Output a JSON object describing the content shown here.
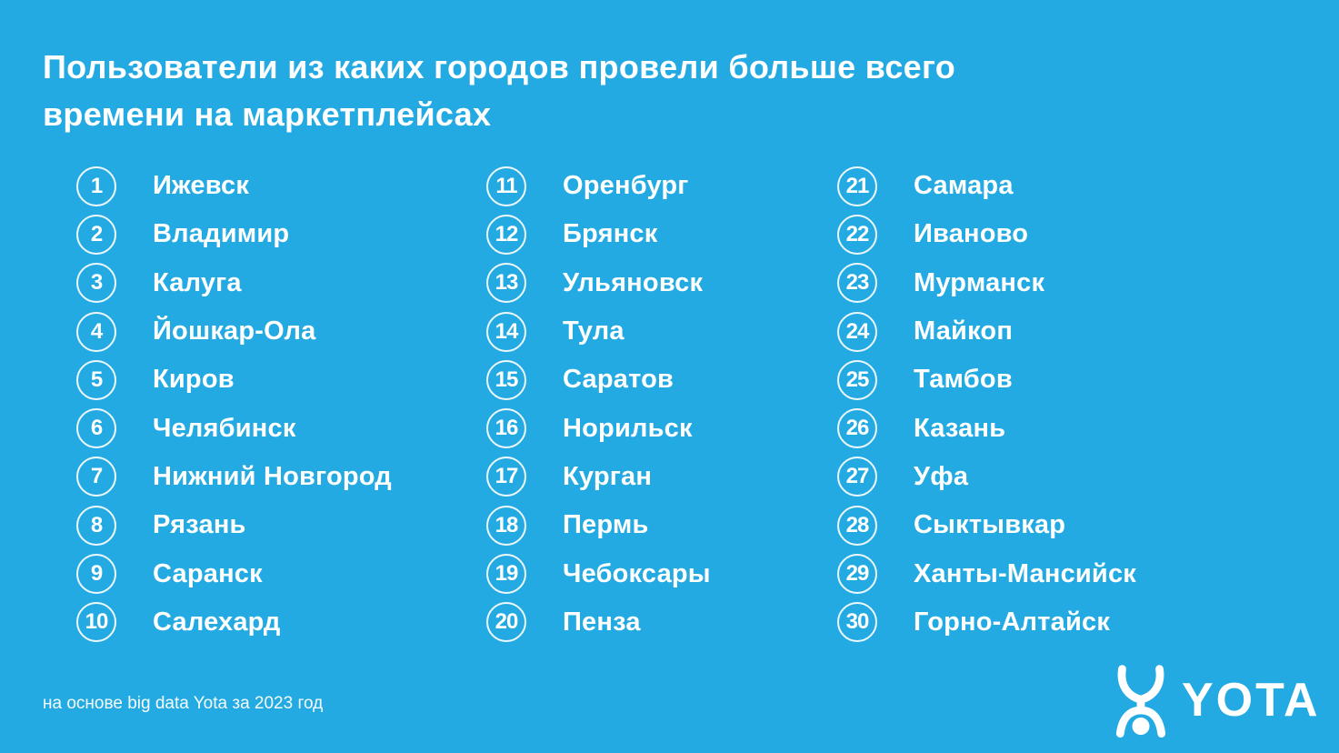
{
  "colors": {
    "background": "#23AAE2",
    "text": "#FFFFFF"
  },
  "title": {
    "line1": "Пользователи из каких городов провели больше всего",
    "line2": "времени на маркетплейсах"
  },
  "ranking": {
    "columns": [
      {
        "items": [
          {
            "rank": 1,
            "city": "Ижевск"
          },
          {
            "rank": 2,
            "city": "Владимир"
          },
          {
            "rank": 3,
            "city": "Калуга"
          },
          {
            "rank": 4,
            "city": "Йошкар-Ола"
          },
          {
            "rank": 5,
            "city": "Киров"
          },
          {
            "rank": 6,
            "city": "Челябинск"
          },
          {
            "rank": 7,
            "city": "Нижний Новгород"
          },
          {
            "rank": 8,
            "city": "Рязань"
          },
          {
            "rank": 9,
            "city": "Саранск"
          },
          {
            "rank": 10,
            "city": "Салехард"
          }
        ]
      },
      {
        "items": [
          {
            "rank": 11,
            "city": "Оренбург"
          },
          {
            "rank": 12,
            "city": "Брянск"
          },
          {
            "rank": 13,
            "city": "Ульяновск"
          },
          {
            "rank": 14,
            "city": "Тула"
          },
          {
            "rank": 15,
            "city": "Саратов"
          },
          {
            "rank": 16,
            "city": "Норильск"
          },
          {
            "rank": 17,
            "city": "Курган"
          },
          {
            "rank": 18,
            "city": "Пермь"
          },
          {
            "rank": 19,
            "city": "Чебоксары"
          },
          {
            "rank": 20,
            "city": "Пенза"
          }
        ]
      },
      {
        "items": [
          {
            "rank": 21,
            "city": "Самара"
          },
          {
            "rank": 22,
            "city": "Иваново"
          },
          {
            "rank": 23,
            "city": "Мурманск"
          },
          {
            "rank": 24,
            "city": "Майкоп"
          },
          {
            "rank": 25,
            "city": "Тамбов"
          },
          {
            "rank": 26,
            "city": "Казань"
          },
          {
            "rank": 27,
            "city": "Уфа"
          },
          {
            "rank": 28,
            "city": "Сыктывкар"
          },
          {
            "rank": 29,
            "city": "Ханты-Мансийск"
          },
          {
            "rank": 30,
            "city": "Горно-Алтайск"
          }
        ]
      }
    ]
  },
  "footnote": "на основе big data Yota за 2023 год",
  "logo": {
    "brand": "YOTA",
    "mark_icon": "yota-figure-icon"
  },
  "chart_data": {
    "type": "table",
    "title": "Пользователи из каких городов провели больше всего времени на маркетплейсах",
    "columns": [
      "rank",
      "city"
    ],
    "rows": [
      [
        1,
        "Ижевск"
      ],
      [
        2,
        "Владимир"
      ],
      [
        3,
        "Калуга"
      ],
      [
        4,
        "Йошкар-Ола"
      ],
      [
        5,
        "Киров"
      ],
      [
        6,
        "Челябинск"
      ],
      [
        7,
        "Нижний Новгород"
      ],
      [
        8,
        "Рязань"
      ],
      [
        9,
        "Саранск"
      ],
      [
        10,
        "Салехард"
      ],
      [
        11,
        "Оренбург"
      ],
      [
        12,
        "Брянск"
      ],
      [
        13,
        "Ульяновск"
      ],
      [
        14,
        "Тула"
      ],
      [
        15,
        "Саратов"
      ],
      [
        16,
        "Норильск"
      ],
      [
        17,
        "Курган"
      ],
      [
        18,
        "Пермь"
      ],
      [
        19,
        "Чебоксары"
      ],
      [
        20,
        "Пенза"
      ],
      [
        21,
        "Самара"
      ],
      [
        22,
        "Иваново"
      ],
      [
        23,
        "Мурманск"
      ],
      [
        24,
        "Майкоп"
      ],
      [
        25,
        "Тамбов"
      ],
      [
        26,
        "Казань"
      ],
      [
        27,
        "Уфа"
      ],
      [
        28,
        "Сыктывкар"
      ],
      [
        29,
        "Ханты-Мансийск"
      ],
      [
        30,
        "Горно-Алтайск"
      ]
    ],
    "annotations": [
      "на основе big data Yota за 2023 год"
    ]
  }
}
